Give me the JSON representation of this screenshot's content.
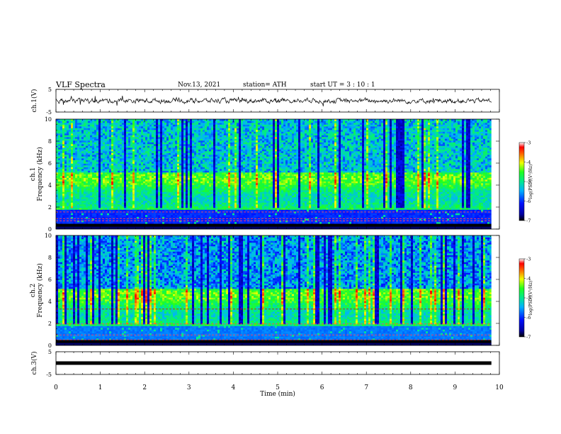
{
  "header": {
    "title": "VLF  Spectra",
    "date": "Nov.13, 2021",
    "station": "station= ATH",
    "start": "start  UT  =    3  : 10 : 1"
  },
  "chart_data": [
    {
      "type": "line",
      "name": "ch1-waveform",
      "ylabel": "ch.1(V)",
      "ylim": [
        -5,
        5
      ],
      "yticks": [
        "5",
        "-5"
      ]
    },
    {
      "type": "heatmap",
      "name": "ch1-spectrogram",
      "ylabel": "Frequency  (kHz)",
      "ylabel_prefix": "ch.1",
      "ylim": [
        0,
        10
      ],
      "yticks": [
        "0",
        "2",
        "4",
        "6",
        "8",
        "10"
      ],
      "colorbar": {
        "ticks": [
          "-3",
          "-4",
          "-5",
          "-6",
          "-7"
        ],
        "label": "log(PSD)(V²/Hz)",
        "range": [
          -7,
          -3
        ]
      }
    },
    {
      "type": "heatmap",
      "name": "ch2-spectrogram",
      "ylabel": "Frequency  (kHz)",
      "ylabel_prefix": "ch.2",
      "ylim": [
        0,
        10
      ],
      "yticks": [
        "0",
        "2",
        "4",
        "6",
        "8",
        "10"
      ],
      "colorbar": {
        "ticks": [
          "-3",
          "-4",
          "-5",
          "-6",
          "-7"
        ],
        "label": "log(PSD)(V²/Hz)",
        "range": [
          -7,
          -3
        ]
      }
    },
    {
      "type": "line",
      "name": "ch3-waveform",
      "ylabel": "ch.3(V)",
      "ylim": [
        -5,
        5
      ],
      "yticks": [
        "5",
        "-5"
      ]
    }
  ],
  "xaxis": {
    "label": "Time  (min)",
    "ticks": [
      "0",
      "1",
      "2",
      "3",
      "4",
      "5",
      "6",
      "7",
      "8",
      "9",
      "10"
    ],
    "range": [
      0,
      10
    ]
  }
}
